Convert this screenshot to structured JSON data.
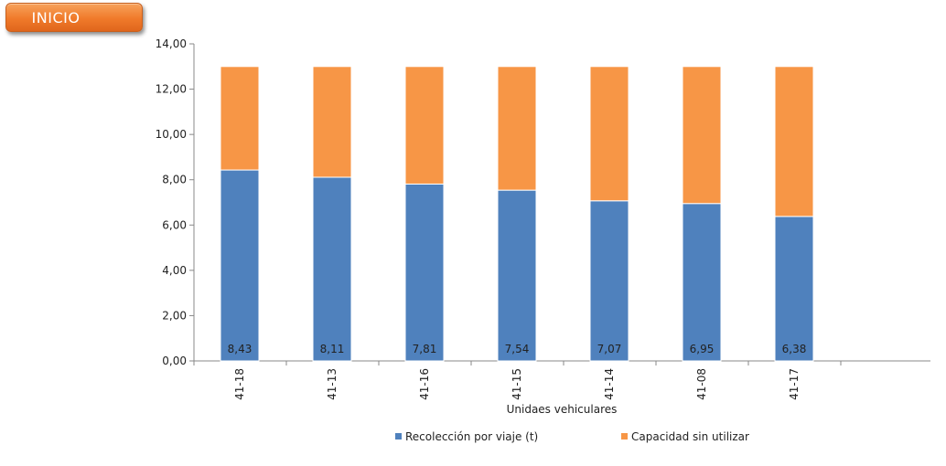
{
  "button": {
    "label": "INICIO"
  },
  "chart_data": {
    "type": "bar",
    "stacked": true,
    "categories": [
      "41-18",
      "41-13",
      "41-16",
      "41-15",
      "41-14",
      "41-08",
      "41-17"
    ],
    "series": [
      {
        "name": "Recolección por viaje (t)",
        "values": [
          8.43,
          8.11,
          7.81,
          7.54,
          7.07,
          6.95,
          6.38
        ],
        "color": "#4f81bd",
        "data_labels": [
          "8,43",
          "8,11",
          "7,81",
          "7,54",
          "7,07",
          "6,95",
          "6,38"
        ]
      },
      {
        "name": "Capacidad sin utilizar",
        "values": [
          4.57,
          4.89,
          5.19,
          5.46,
          5.93,
          6.05,
          6.62
        ],
        "color": "#f79646"
      }
    ],
    "xlabel": "Unidaes vehiculares",
    "ylabel": "",
    "ylim": [
      0,
      14
    ],
    "yticks": [
      "0,00",
      "2,00",
      "4,00",
      "6,00",
      "8,00",
      "10,00",
      "12,00",
      "14,00"
    ],
    "grid": false,
    "legend_position": "bottom"
  }
}
